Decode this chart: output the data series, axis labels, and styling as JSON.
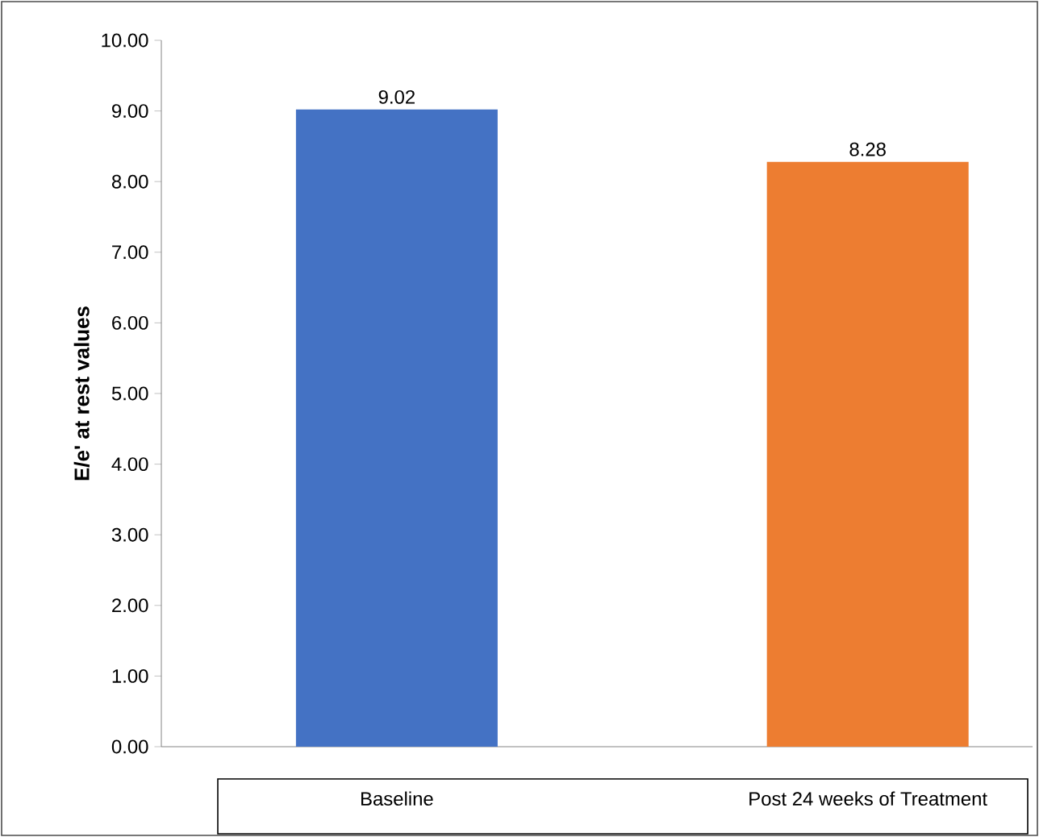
{
  "chart_data": {
    "type": "bar",
    "ylabel": "E/e' at rest values",
    "categories": [
      "Baseline",
      "Post 24 weeks of Treatment"
    ],
    "values": [
      9.02,
      8.28
    ],
    "colors": [
      "#4472c4",
      "#ed7d31"
    ],
    "ylim": [
      0,
      10
    ],
    "yticks": [
      {
        "value": 0,
        "label": "0.00"
      },
      {
        "value": 1,
        "label": "1.00"
      },
      {
        "value": 2,
        "label": "2.00"
      },
      {
        "value": 3,
        "label": "3.00"
      },
      {
        "value": 4,
        "label": "4.00"
      },
      {
        "value": 5,
        "label": "5.00"
      },
      {
        "value": 6,
        "label": "6.00"
      },
      {
        "value": 7,
        "label": "7.00"
      },
      {
        "value": 8,
        "label": "8.00"
      },
      {
        "value": 9,
        "label": "9.00"
      },
      {
        "value": 10,
        "label": "10.00"
      }
    ],
    "data_labels": true
  }
}
